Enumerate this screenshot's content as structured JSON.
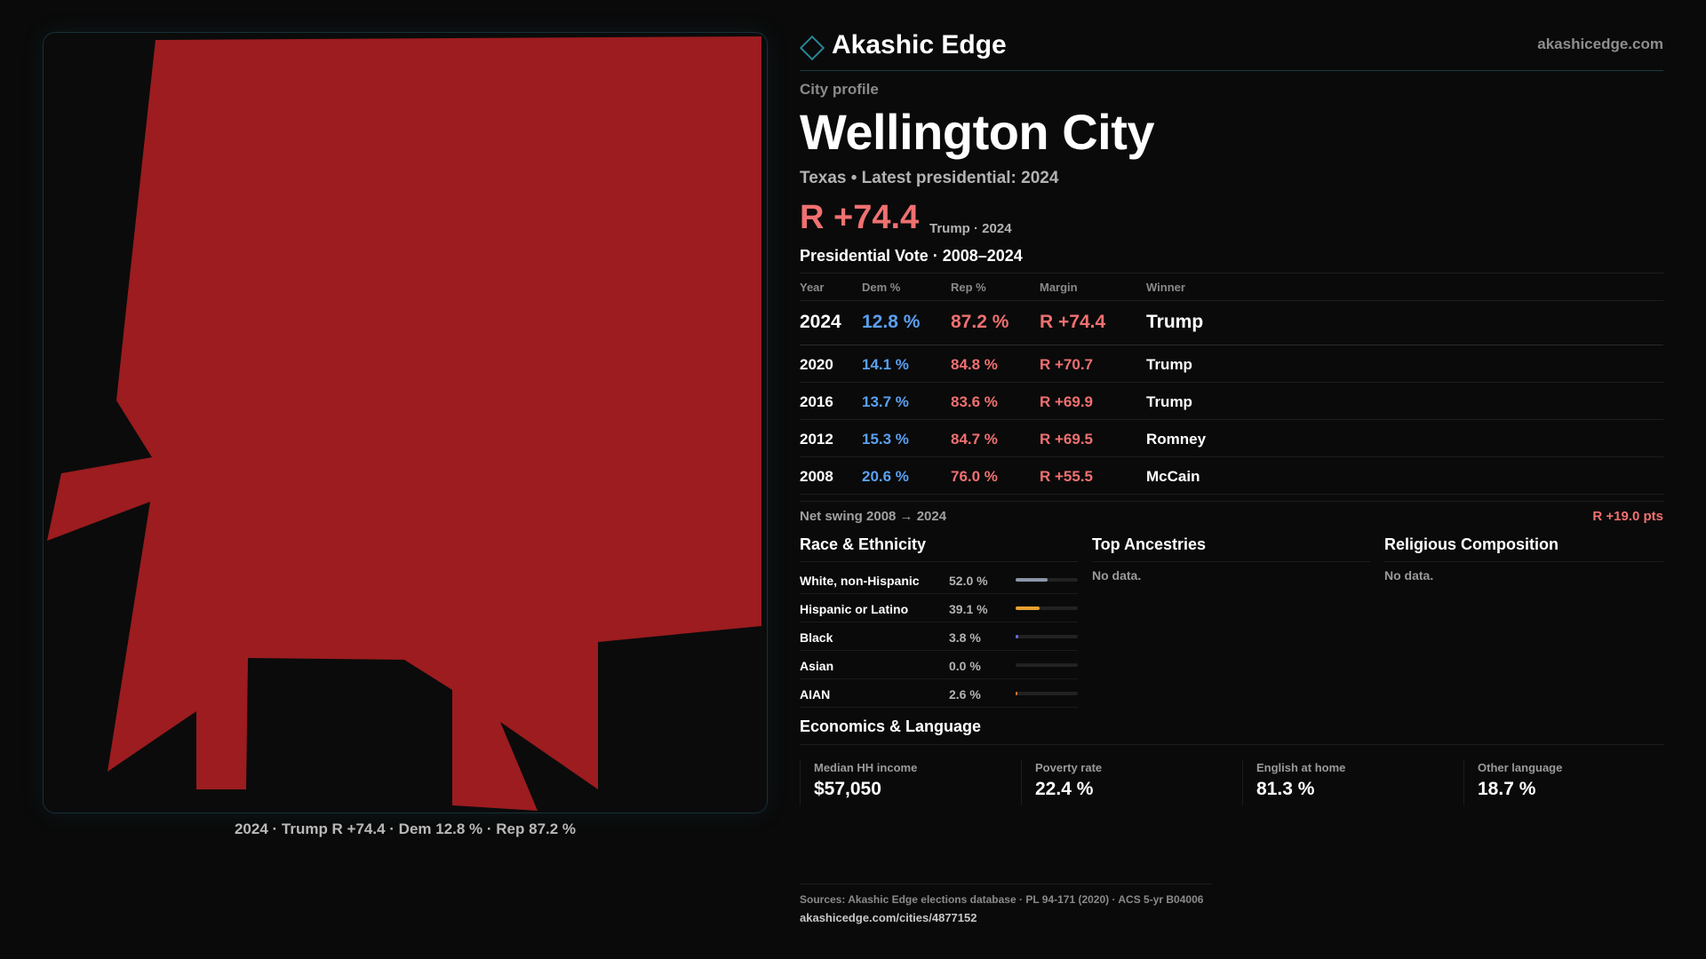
{
  "brand": {
    "name": "Akashic Edge",
    "site": "akashicedge.com",
    "logo_icon": "diamond-outline-icon",
    "accent": "#2b8596"
  },
  "map": {
    "caption": "2024 · Trump R +74.4 · Dem 12.8 % · Rep 87.2 %",
    "fill_color": "#9c1c1f"
  },
  "profile": {
    "eyebrow": "City profile",
    "title": "Wellington City",
    "subtitle": "Texas • Latest presidential: 2024",
    "margin": "R +74.4",
    "margin_note": "Trump · 2024"
  },
  "vote_table": {
    "heading": "Presidential Vote · 2008–2024",
    "headers": {
      "year": "Year",
      "dem": "Dem %",
      "rep": "Rep %",
      "margin": "Margin",
      "winner": "Winner"
    },
    "rows": [
      {
        "year": "2024",
        "dem": "12.8 %",
        "rep": "87.2 %",
        "margin": "R +74.4",
        "winner": "Trump"
      },
      {
        "year": "2020",
        "dem": "14.1 %",
        "rep": "84.8 %",
        "margin": "R +70.7",
        "winner": "Trump"
      },
      {
        "year": "2016",
        "dem": "13.7 %",
        "rep": "83.6 %",
        "margin": "R +69.9",
        "winner": "Trump"
      },
      {
        "year": "2012",
        "dem": "15.3 %",
        "rep": "84.7 %",
        "margin": "R +69.5",
        "winner": "Romney"
      },
      {
        "year": "2008",
        "dem": "20.6 %",
        "rep": "76.0 %",
        "margin": "R +55.5",
        "winner": "McCain"
      }
    ],
    "colors": {
      "dem": "#5aa0f0",
      "rep": "#f07070"
    }
  },
  "swing": {
    "label": "Net swing 2008 → 2024",
    "value": "R +19.0 pts"
  },
  "race": {
    "title": "Race & Ethnicity",
    "items": [
      {
        "label": "White, non-Hispanic",
        "pct": "52.0 %",
        "share": 0.52,
        "color": "#8a96a8"
      },
      {
        "label": "Hispanic or Latino",
        "pct": "39.1 %",
        "share": 0.391,
        "color": "#e8a030"
      },
      {
        "label": "Black",
        "pct": "3.8 %",
        "share": 0.038,
        "color": "#6a6ae0"
      },
      {
        "label": "Asian",
        "pct": "0.0 %",
        "share": 0.0,
        "color": "#40b0b0"
      },
      {
        "label": "AIAN",
        "pct": "2.6 %",
        "share": 0.026,
        "color": "#e07830"
      }
    ]
  },
  "ancestries": {
    "title": "Top Ancestries",
    "empty": "No data."
  },
  "religion": {
    "title": "Religious Composition",
    "empty": "No data."
  },
  "economics": {
    "title": "Economics & Language",
    "cards": [
      {
        "label": "Median HH income",
        "value": "$57,050"
      },
      {
        "label": "Poverty rate",
        "value": "22.4 %"
      },
      {
        "label": "English at home",
        "value": "81.3 %"
      },
      {
        "label": "Other language",
        "value": "18.7 %"
      }
    ]
  },
  "sources": {
    "text": "Sources: Akashic Edge elections database · PL 94-171 (2020) · ACS 5-yr B04006",
    "link": "akashicedge.com/cities/4877152"
  }
}
